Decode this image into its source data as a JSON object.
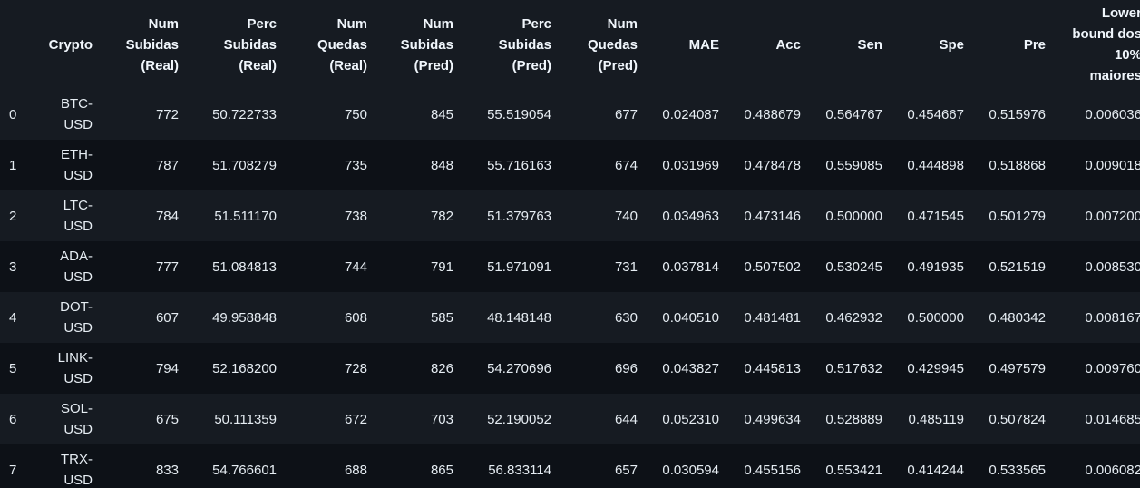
{
  "table": {
    "columns": [
      {
        "key": "index",
        "label": ""
      },
      {
        "key": "crypto",
        "label": "Crypto"
      },
      {
        "key": "num_subidas_real",
        "label": "Num Subidas (Real)"
      },
      {
        "key": "perc_subidas_real",
        "label": "Perc Subidas (Real)"
      },
      {
        "key": "num_quedas_real",
        "label": "Num Quedas (Real)"
      },
      {
        "key": "num_subidas_pred",
        "label": "Num Subidas (Pred)"
      },
      {
        "key": "perc_subidas_pred",
        "label": "Perc Subidas (Pred)"
      },
      {
        "key": "num_quedas_pred",
        "label": "Num Quedas (Pred)"
      },
      {
        "key": "mae",
        "label": "MAE"
      },
      {
        "key": "acc",
        "label": "Acc"
      },
      {
        "key": "sen",
        "label": "Sen"
      },
      {
        "key": "spe",
        "label": "Spe"
      },
      {
        "key": "pre",
        "label": "Pre"
      },
      {
        "key": "lower_bound",
        "label": "Lower bound dos 10% maiores"
      }
    ],
    "header_lines": [
      [
        ""
      ],
      [
        "Crypto"
      ],
      [
        "Num",
        "Subidas",
        "(Real)"
      ],
      [
        "Perc",
        "Subidas",
        "(Real)"
      ],
      [
        "Num",
        "Quedas",
        "(Real)"
      ],
      [
        "Num",
        "Subidas",
        "(Pred)"
      ],
      [
        "Perc",
        "Subidas",
        "(Pred)"
      ],
      [
        "Num",
        "Quedas",
        "(Pred)"
      ],
      [
        "MAE"
      ],
      [
        "Acc"
      ],
      [
        "Sen"
      ],
      [
        "Spe"
      ],
      [
        "Pre"
      ],
      [
        "Lower",
        "bound dos",
        "10%",
        "maiores"
      ]
    ],
    "rows": [
      {
        "index": "0",
        "crypto": [
          "BTC-",
          "USD"
        ],
        "values": [
          "772",
          "50.722733",
          "750",
          "845",
          "55.519054",
          "677",
          "0.024087",
          "0.488679",
          "0.564767",
          "0.454667",
          "0.515976",
          "0.006036"
        ]
      },
      {
        "index": "1",
        "crypto": [
          "ETH-",
          "USD"
        ],
        "values": [
          "787",
          "51.708279",
          "735",
          "848",
          "55.716163",
          "674",
          "0.031969",
          "0.478478",
          "0.559085",
          "0.444898",
          "0.518868",
          "0.009018"
        ]
      },
      {
        "index": "2",
        "crypto": [
          "LTC-",
          "USD"
        ],
        "values": [
          "784",
          "51.511170",
          "738",
          "782",
          "51.379763",
          "740",
          "0.034963",
          "0.473146",
          "0.500000",
          "0.471545",
          "0.501279",
          "0.007200"
        ]
      },
      {
        "index": "3",
        "crypto": [
          "ADA-",
          "USD"
        ],
        "values": [
          "777",
          "51.084813",
          "744",
          "791",
          "51.971091",
          "731",
          "0.037814",
          "0.507502",
          "0.530245",
          "0.491935",
          "0.521519",
          "0.008530"
        ]
      },
      {
        "index": "4",
        "crypto": [
          "DOT-",
          "USD"
        ],
        "values": [
          "607",
          "49.958848",
          "608",
          "585",
          "48.148148",
          "630",
          "0.040510",
          "0.481481",
          "0.462932",
          "0.500000",
          "0.480342",
          "0.008167"
        ]
      },
      {
        "index": "5",
        "crypto": [
          "LINK-",
          "USD"
        ],
        "values": [
          "794",
          "52.168200",
          "728",
          "826",
          "54.270696",
          "696",
          "0.043827",
          "0.445813",
          "0.517632",
          "0.429945",
          "0.497579",
          "0.009760"
        ]
      },
      {
        "index": "6",
        "crypto": [
          "SOL-",
          "USD"
        ],
        "values": [
          "675",
          "50.111359",
          "672",
          "703",
          "52.190052",
          "644",
          "0.052310",
          "0.499634",
          "0.528889",
          "0.485119",
          "0.507824",
          "0.014685"
        ]
      },
      {
        "index": "7",
        "crypto": [
          "TRX-",
          "USD"
        ],
        "values": [
          "833",
          "54.766601",
          "688",
          "865",
          "56.833114",
          "657",
          "0.030594",
          "0.455156",
          "0.553421",
          "0.414244",
          "0.533565",
          "0.006082"
        ]
      }
    ]
  },
  "colors": {
    "background": "#0d1117",
    "header_background": "#161b22",
    "row_odd": "#161b22",
    "row_even": "#0d1117",
    "text": "#e6edf3"
  }
}
